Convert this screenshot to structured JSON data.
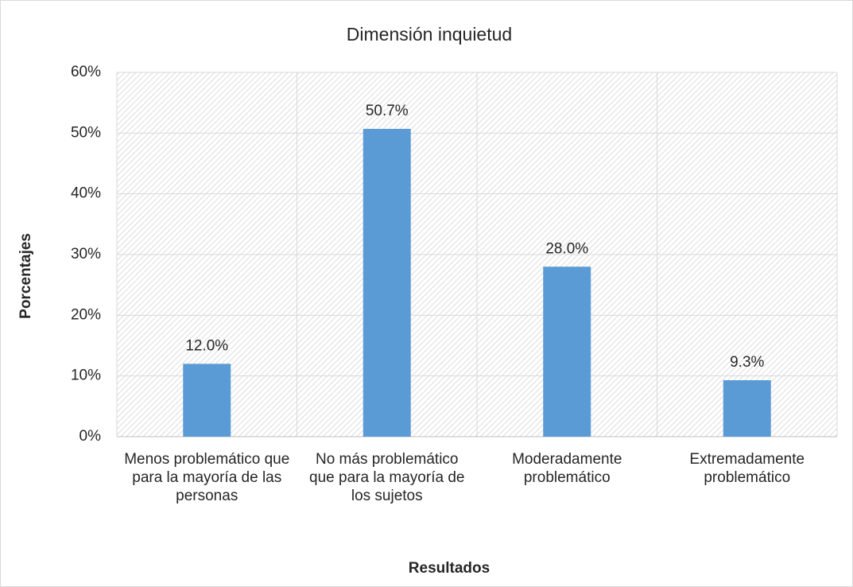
{
  "chart_data": {
    "type": "bar",
    "title": "Dimensión inquietud",
    "x_label": "Resultados",
    "y_label": "Porcentajes",
    "categories": [
      "Menos problemático que para la mayoría de las personas",
      "No más problemático que para la mayoría de los sujetos",
      "Moderadamente problemático",
      "Extremadamente problemático"
    ],
    "values": [
      12.0,
      50.7,
      28.0,
      9.3
    ],
    "value_labels": [
      "12.0%",
      "50.7%",
      "28.0%",
      "9.3%"
    ],
    "color": "#5b9bd5",
    "ylim": [
      0,
      60
    ],
    "yticks": [
      {
        "value": 0,
        "label": "0%"
      },
      {
        "value": 10,
        "label": "10%"
      },
      {
        "value": 20,
        "label": "20%"
      },
      {
        "value": 30,
        "label": "30%"
      },
      {
        "value": 40,
        "label": "40%"
      },
      {
        "value": 50,
        "label": "50%"
      },
      {
        "value": 60,
        "label": "60%"
      }
    ],
    "grid": true
  }
}
